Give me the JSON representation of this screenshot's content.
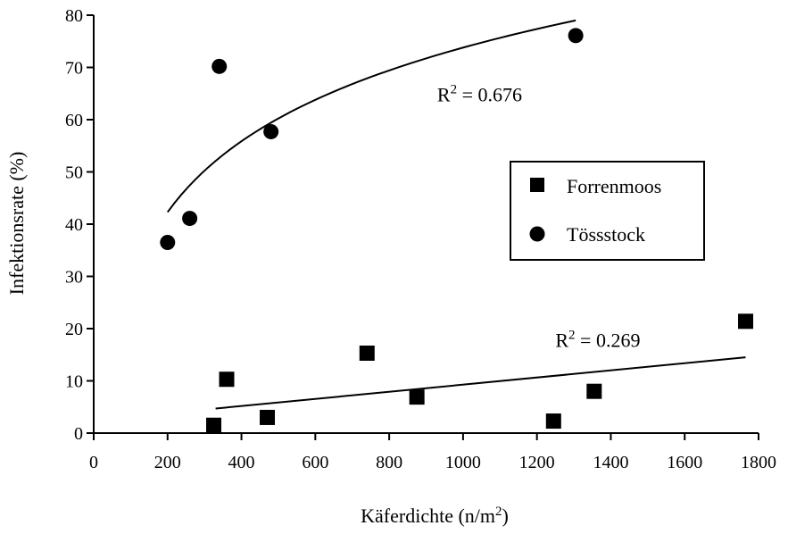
{
  "chart_data": {
    "type": "scatter",
    "xlabel": "Käferdichte (n/m",
    "xlabel_sup": "2",
    "xlabel_tail": ")",
    "ylabel": "Infektionsrate (%)",
    "xlim": [
      0,
      1800
    ],
    "ylim": [
      0,
      80
    ],
    "x_ticks": [
      "0",
      "200",
      "400",
      "600",
      "800",
      "1000",
      "1200",
      "1400",
      "1600",
      "1800"
    ],
    "y_ticks": [
      "0",
      "10",
      "20",
      "30",
      "40",
      "50",
      "60",
      "70",
      "80"
    ],
    "grid": false,
    "legend_position": "right-middle",
    "series": [
      {
        "name": "Forrenmoos",
        "marker": "square",
        "x": [
          325,
          360,
          470,
          740,
          875,
          1245,
          1355,
          1765
        ],
        "y": [
          1.5,
          10.3,
          3.0,
          15.3,
          6.9,
          2.3,
          8.0,
          21.4
        ],
        "fit": {
          "kind": "linear",
          "x0": 330,
          "y0": 4.7,
          "x1": 1765,
          "y1": 14.5
        },
        "r2_prefix": "R",
        "r2_sup": "2",
        "r2_value": " = 0.269",
        "r2_anchor": [
          1250,
          16.5
        ]
      },
      {
        "name": "Tössstock",
        "marker": "circle",
        "x": [
          200,
          260,
          340,
          480,
          1305
        ],
        "y": [
          36.5,
          41.1,
          70.2,
          57.7,
          76.1
        ],
        "fit": {
          "kind": "log",
          "x0": 200,
          "y0": 42.3,
          "x1": 1305,
          "y1": 79.0
        },
        "r2_prefix": "R",
        "r2_sup": "2",
        "r2_value": " = 0.676",
        "r2_anchor": [
          930,
          63.5
        ]
      }
    ],
    "legend_labels": [
      "Forrenmoos",
      "Tössstock"
    ]
  }
}
